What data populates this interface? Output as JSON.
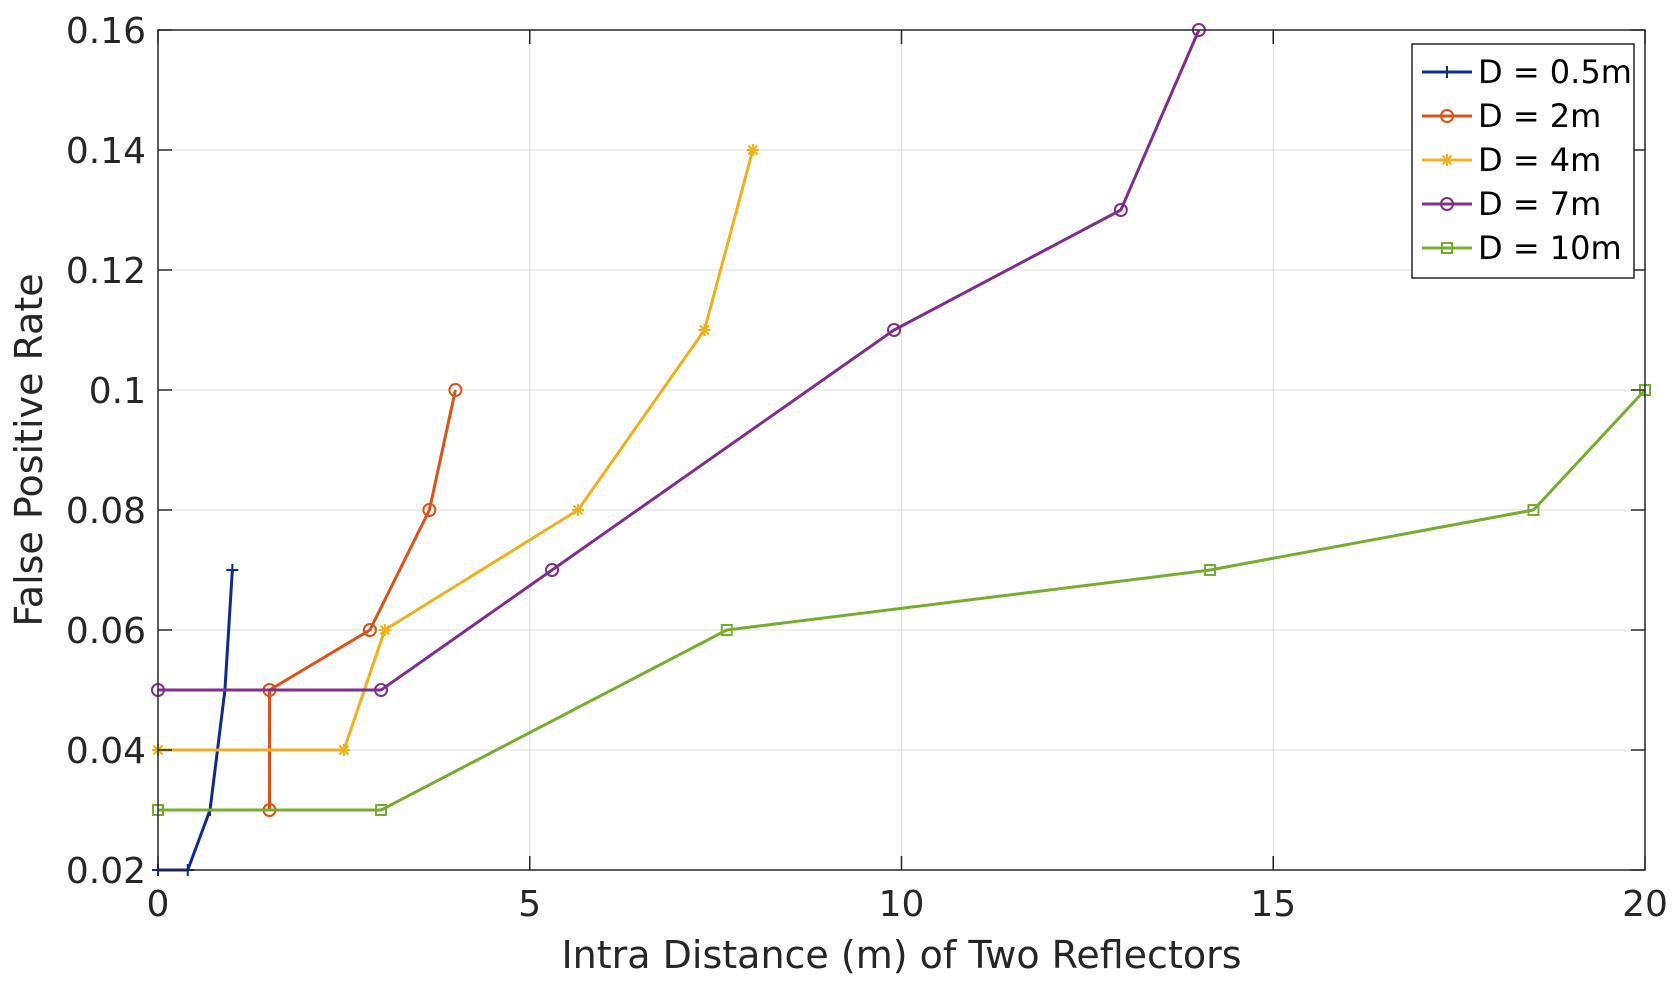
{
  "chart_data": {
    "type": "line",
    "title": "",
    "xlabel": "Intra Distance (m) of Two Reflectors",
    "ylabel": "False Positive Rate",
    "xlim": [
      0,
      20
    ],
    "ylim": [
      0.02,
      0.16
    ],
    "x_ticks": [
      0,
      5,
      10,
      15,
      20
    ],
    "x_tick_labels": [
      "0",
      "5",
      "10",
      "15",
      "20"
    ],
    "y_ticks": [
      0.02,
      0.04,
      0.06,
      0.08,
      0.1,
      0.12,
      0.14,
      0.16
    ],
    "y_tick_labels": [
      "0.02",
      "0.04",
      "0.06",
      "0.08",
      "0.1",
      "0.12",
      "0.14",
      "0.16"
    ],
    "grid": true,
    "legend_position": "top-right",
    "series": [
      {
        "name": "D = 0.5m",
        "color": "#0e2a8f",
        "marker": "plus",
        "x": [
          0,
          0.4,
          0.7,
          0.9,
          1.0
        ],
        "y": [
          0.02,
          0.02,
          0.03,
          0.05,
          0.07
        ]
      },
      {
        "name": "D = 2m",
        "color": "#d95319",
        "marker": "circle",
        "x": [
          1.5,
          1.5,
          2.85,
          3.65,
          4.0
        ],
        "y": [
          0.03,
          0.05,
          0.06,
          0.08,
          0.1
        ]
      },
      {
        "name": "D = 4m",
        "color": "#edb120",
        "marker": "asterisk",
        "x": [
          0,
          2.5,
          3.05,
          5.65,
          7.35,
          8.0
        ],
        "y": [
          0.04,
          0.04,
          0.06,
          0.08,
          0.11,
          0.14
        ]
      },
      {
        "name": "D = 7m",
        "color": "#7e2f8e",
        "marker": "circle",
        "x": [
          0,
          3.0,
          5.3,
          9.9,
          12.95,
          14.0
        ],
        "y": [
          0.05,
          0.05,
          0.07,
          0.11,
          0.13,
          0.16
        ]
      },
      {
        "name": "D = 10m",
        "color": "#77ac30",
        "marker": "square",
        "x": [
          0,
          3.0,
          7.65,
          14.15,
          18.5,
          20.0
        ],
        "y": [
          0.03,
          0.03,
          0.06,
          0.07,
          0.08,
          0.1
        ]
      }
    ]
  }
}
